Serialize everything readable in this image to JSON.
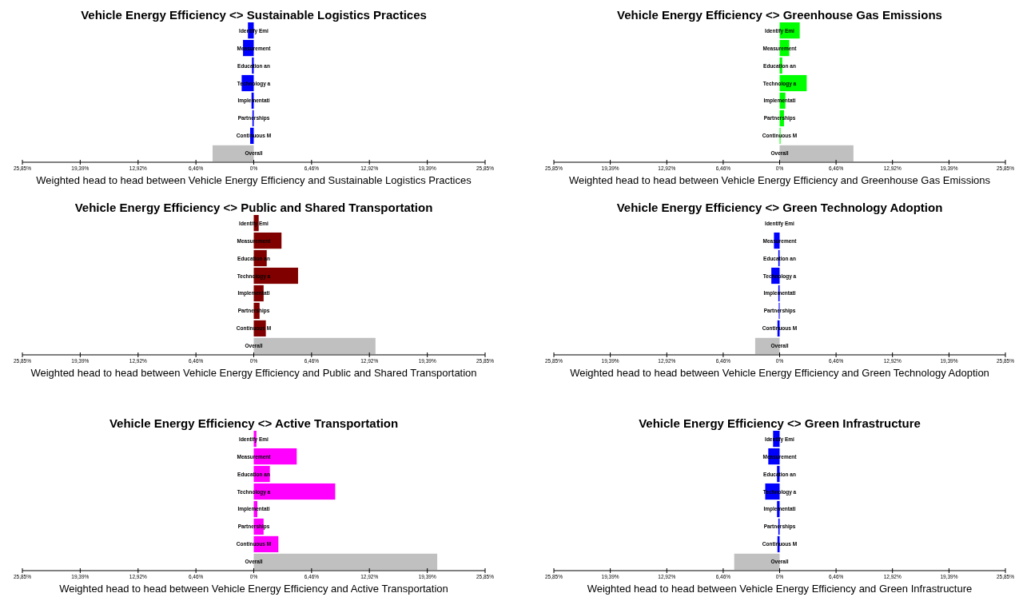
{
  "chart_data": [
    {
      "type": "bar",
      "orientation": "horizontal",
      "title": "Vehicle Energy Efficiency <> Sustainable Logistics Practices",
      "xlabel": "Weighted head to head between Vehicle Energy Efficiency and Sustainable Logistics Practices",
      "categories": [
        "Identify Emi",
        "Measurement",
        "Education an",
        "Technology a",
        "Implementati",
        "Partnerships",
        "Continuous M",
        "Overall"
      ],
      "values": [
        -0.65,
        -1.2,
        -0.2,
        -1.35,
        -0.25,
        -0.15,
        -0.4,
        -4.6
      ],
      "colors": [
        "#0000ff",
        "#0000ff",
        "#0000ff",
        "#0000ff",
        "#0000ff",
        "#0000ff",
        "#0000ff",
        "#c0c0c0"
      ],
      "xlim": [
        -25.85,
        25.85
      ],
      "xticks": [
        {
          "value": -25.85,
          "label": "25,85%"
        },
        {
          "value": -19.39,
          "label": "19,39%"
        },
        {
          "value": -12.92,
          "label": "12,92%"
        },
        {
          "value": -6.46,
          "label": "6,46%"
        },
        {
          "value": 0,
          "label": "0%"
        },
        {
          "value": 6.46,
          "label": "6,46%"
        },
        {
          "value": 12.92,
          "label": "12,92%"
        },
        {
          "value": 19.39,
          "label": "19,39%"
        },
        {
          "value": 25.85,
          "label": "25,85%"
        }
      ]
    },
    {
      "type": "bar",
      "orientation": "horizontal",
      "title": "Vehicle Energy Efficiency <> Greenhouse Gas Emissions",
      "xlabel": "Weighted head to head between Vehicle Energy Efficiency and Greenhouse Gas Emissions",
      "categories": [
        "Identify Emi",
        "Measurement",
        "Education an",
        "Technology a",
        "Implementati",
        "Partnerships",
        "Continuous M",
        "Overall"
      ],
      "values": [
        2.3,
        1.1,
        0.3,
        3.1,
        0.65,
        0.5,
        0.1,
        8.45
      ],
      "colors": [
        "#00ff00",
        "#00ff00",
        "#00ff00",
        "#00ff00",
        "#00ff00",
        "#00ff00",
        "#00ff00",
        "#c0c0c0"
      ],
      "xlim": [
        -25.85,
        25.85
      ],
      "xticks": [
        {
          "value": -25.85,
          "label": "25,85%"
        },
        {
          "value": -19.39,
          "label": "19,39%"
        },
        {
          "value": -12.92,
          "label": "12,92%"
        },
        {
          "value": -6.46,
          "label": "6,46%"
        },
        {
          "value": 0,
          "label": "0%"
        },
        {
          "value": 6.46,
          "label": "6,46%"
        },
        {
          "value": 12.92,
          "label": "12,92%"
        },
        {
          "value": 19.39,
          "label": "19,39%"
        },
        {
          "value": 25.85,
          "label": "25,85%"
        }
      ]
    },
    {
      "type": "bar",
      "orientation": "horizontal",
      "title": "Vehicle Energy Efficiency <> Public and Shared Transportation",
      "xlabel": "Weighted head to head between Vehicle Energy Efficiency and Public and Shared Transportation",
      "categories": [
        "Identify Emi",
        "Measurement",
        "Education an",
        "Technology a",
        "Implementati",
        "Partnerships",
        "Continuous M",
        "Overall"
      ],
      "values": [
        0.55,
        3.1,
        1.45,
        4.95,
        1.1,
        0.65,
        1.35,
        13.6
      ],
      "colors": [
        "#800000",
        "#800000",
        "#800000",
        "#800000",
        "#800000",
        "#800000",
        "#800000",
        "#c0c0c0"
      ],
      "xlim": [
        -25.85,
        25.85
      ],
      "xticks": [
        {
          "value": -25.85,
          "label": "25,85%"
        },
        {
          "value": -19.39,
          "label": "19,39%"
        },
        {
          "value": -12.92,
          "label": "12,92%"
        },
        {
          "value": -6.46,
          "label": "6,46%"
        },
        {
          "value": 0,
          "label": "0%"
        },
        {
          "value": 6.46,
          "label": "6,46%"
        },
        {
          "value": 12.92,
          "label": "12,92%"
        },
        {
          "value": 19.39,
          "label": "19,39%"
        },
        {
          "value": 25.85,
          "label": "25,85%"
        }
      ]
    },
    {
      "type": "bar",
      "orientation": "horizontal",
      "title": "Vehicle Energy Efficiency <> Green Technology Adoption",
      "xlabel": "Weighted head to head between Vehicle Energy Efficiency and Green Technology Adoption",
      "categories": [
        "Identify Emi",
        "Measurement",
        "Education an",
        "Technology a",
        "Implementati",
        "Partnerships",
        "Continuous M",
        "Overall"
      ],
      "values": [
        0,
        -0.65,
        -0.15,
        -0.95,
        -0.15,
        -0.1,
        -0.25,
        -2.8
      ],
      "colors": [
        "#0000ff",
        "#0000ff",
        "#0000ff",
        "#0000ff",
        "#0000ff",
        "#0000ff",
        "#0000ff",
        "#c0c0c0"
      ],
      "xlim": [
        -25.85,
        25.85
      ],
      "xticks": [
        {
          "value": -25.85,
          "label": "25,85%"
        },
        {
          "value": -19.39,
          "label": "19,39%"
        },
        {
          "value": -12.92,
          "label": "12,92%"
        },
        {
          "value": -6.46,
          "label": "6,46%"
        },
        {
          "value": 0,
          "label": "0%"
        },
        {
          "value": 6.46,
          "label": "6,46%"
        },
        {
          "value": 12.92,
          "label": "12,92%"
        },
        {
          "value": 19.39,
          "label": "19,39%"
        },
        {
          "value": 25.85,
          "label": "25,85%"
        }
      ]
    },
    {
      "type": "bar",
      "orientation": "horizontal",
      "title": "Vehicle Energy Efficiency <> Active Transportation",
      "xlabel": "Weighted head to head between Vehicle Energy Efficiency and Active Transportation",
      "categories": [
        "Identify Emi",
        "Measurement",
        "Education an",
        "Technology a",
        "Implementati",
        "Partnerships",
        "Continuous M",
        "Overall"
      ],
      "values": [
        0.3,
        4.8,
        1.8,
        9.1,
        0.4,
        1.1,
        2.75,
        20.5
      ],
      "colors": [
        "#ff00ff",
        "#ff00ff",
        "#ff00ff",
        "#ff00ff",
        "#ff00ff",
        "#ff00ff",
        "#ff00ff",
        "#c0c0c0"
      ],
      "xlim": [
        -25.85,
        25.85
      ],
      "xticks": [
        {
          "value": -25.85,
          "label": "25,85%"
        },
        {
          "value": -19.39,
          "label": "19,39%"
        },
        {
          "value": -12.92,
          "label": "12,92%"
        },
        {
          "value": -6.46,
          "label": "6,46%"
        },
        {
          "value": 0,
          "label": "0%"
        },
        {
          "value": 6.46,
          "label": "6,46%"
        },
        {
          "value": 12.92,
          "label": "12,92%"
        },
        {
          "value": 19.39,
          "label": "19,39%"
        },
        {
          "value": 25.85,
          "label": "25,85%"
        }
      ]
    },
    {
      "type": "bar",
      "orientation": "horizontal",
      "title": "Vehicle Energy Efficiency <> Green Infrastructure",
      "xlabel": "Weighted head to head between Vehicle Energy Efficiency and Green Infrastructure",
      "categories": [
        "Identify Emi",
        "Measurement",
        "Education an",
        "Technology a",
        "Implementati",
        "Partnerships",
        "Continuous M",
        "Overall"
      ],
      "values": [
        -0.75,
        -1.3,
        -0.3,
        -1.65,
        -0.3,
        -0.15,
        -0.25,
        -5.2
      ],
      "colors": [
        "#0000ff",
        "#0000ff",
        "#0000ff",
        "#0000ff",
        "#0000ff",
        "#0000ff",
        "#0000ff",
        "#c0c0c0"
      ],
      "xlim": [
        -25.85,
        25.85
      ],
      "xticks": [
        {
          "value": -25.85,
          "label": "25,85%"
        },
        {
          "value": -19.39,
          "label": "19,39%"
        },
        {
          "value": -12.92,
          "label": "12,92%"
        },
        {
          "value": -6.46,
          "label": "6,46%"
        },
        {
          "value": 0,
          "label": "0%"
        },
        {
          "value": 6.46,
          "label": "6,46%"
        },
        {
          "value": 12.92,
          "label": "12,92%"
        },
        {
          "value": 19.39,
          "label": "19,39%"
        },
        {
          "value": 25.85,
          "label": "25,85%"
        }
      ]
    }
  ]
}
